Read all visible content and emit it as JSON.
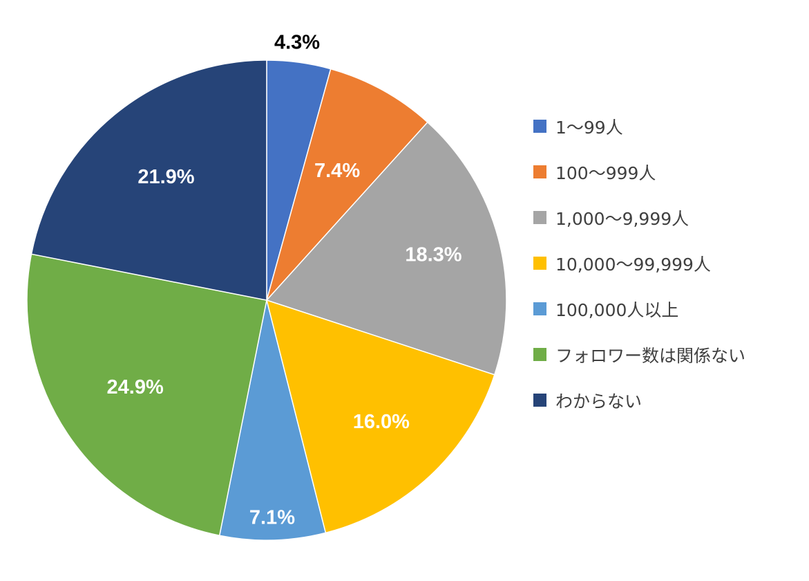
{
  "chart_data": {
    "type": "pie",
    "start_angle_deg": 0,
    "direction": "clockwise",
    "legend_position": "right",
    "categories": [
      "1〜99人",
      "100〜999人",
      "1,000〜9,999人",
      "10,000〜99,999人",
      "100,000人以上",
      "フォロワー数は関係ない",
      "わからない"
    ],
    "values": [
      4.3,
      7.4,
      18.3,
      16.0,
      7.1,
      24.9,
      21.9
    ],
    "labels": [
      "4.3%",
      "7.4%",
      "18.3%",
      "16.0%",
      "7.1%",
      "24.9%",
      "21.9%"
    ],
    "colors": [
      "#4472C4",
      "#ED7D31",
      "#A5A5A5",
      "#FFC000",
      "#5B9BD5",
      "#70AD47",
      "#264478"
    ],
    "label_colors": [
      "#000000",
      "#ffffff",
      "#ffffff",
      "#ffffff",
      "#ffffff",
      "#ffffff",
      "#ffffff"
    ]
  }
}
